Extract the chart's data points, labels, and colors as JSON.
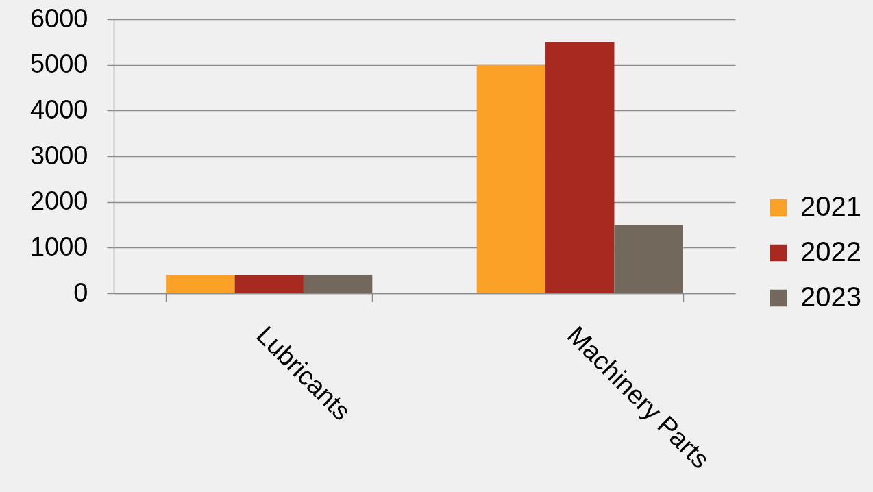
{
  "chart_data": {
    "type": "bar",
    "categories": [
      "Lubricants",
      "Machinery Parts"
    ],
    "series": [
      {
        "name": "2021",
        "color": "#fca127",
        "values": [
          400,
          5000
        ]
      },
      {
        "name": "2022",
        "color": "#a8291f",
        "values": [
          400,
          5500
        ]
      },
      {
        "name": "2023",
        "color": "#72685b",
        "values": [
          400,
          1500
        ]
      }
    ],
    "ylim": [
      0,
      6000
    ],
    "yticks": [
      0,
      1000,
      2000,
      3000,
      4000,
      5000,
      6000
    ],
    "grid": "y",
    "legend": "right"
  }
}
